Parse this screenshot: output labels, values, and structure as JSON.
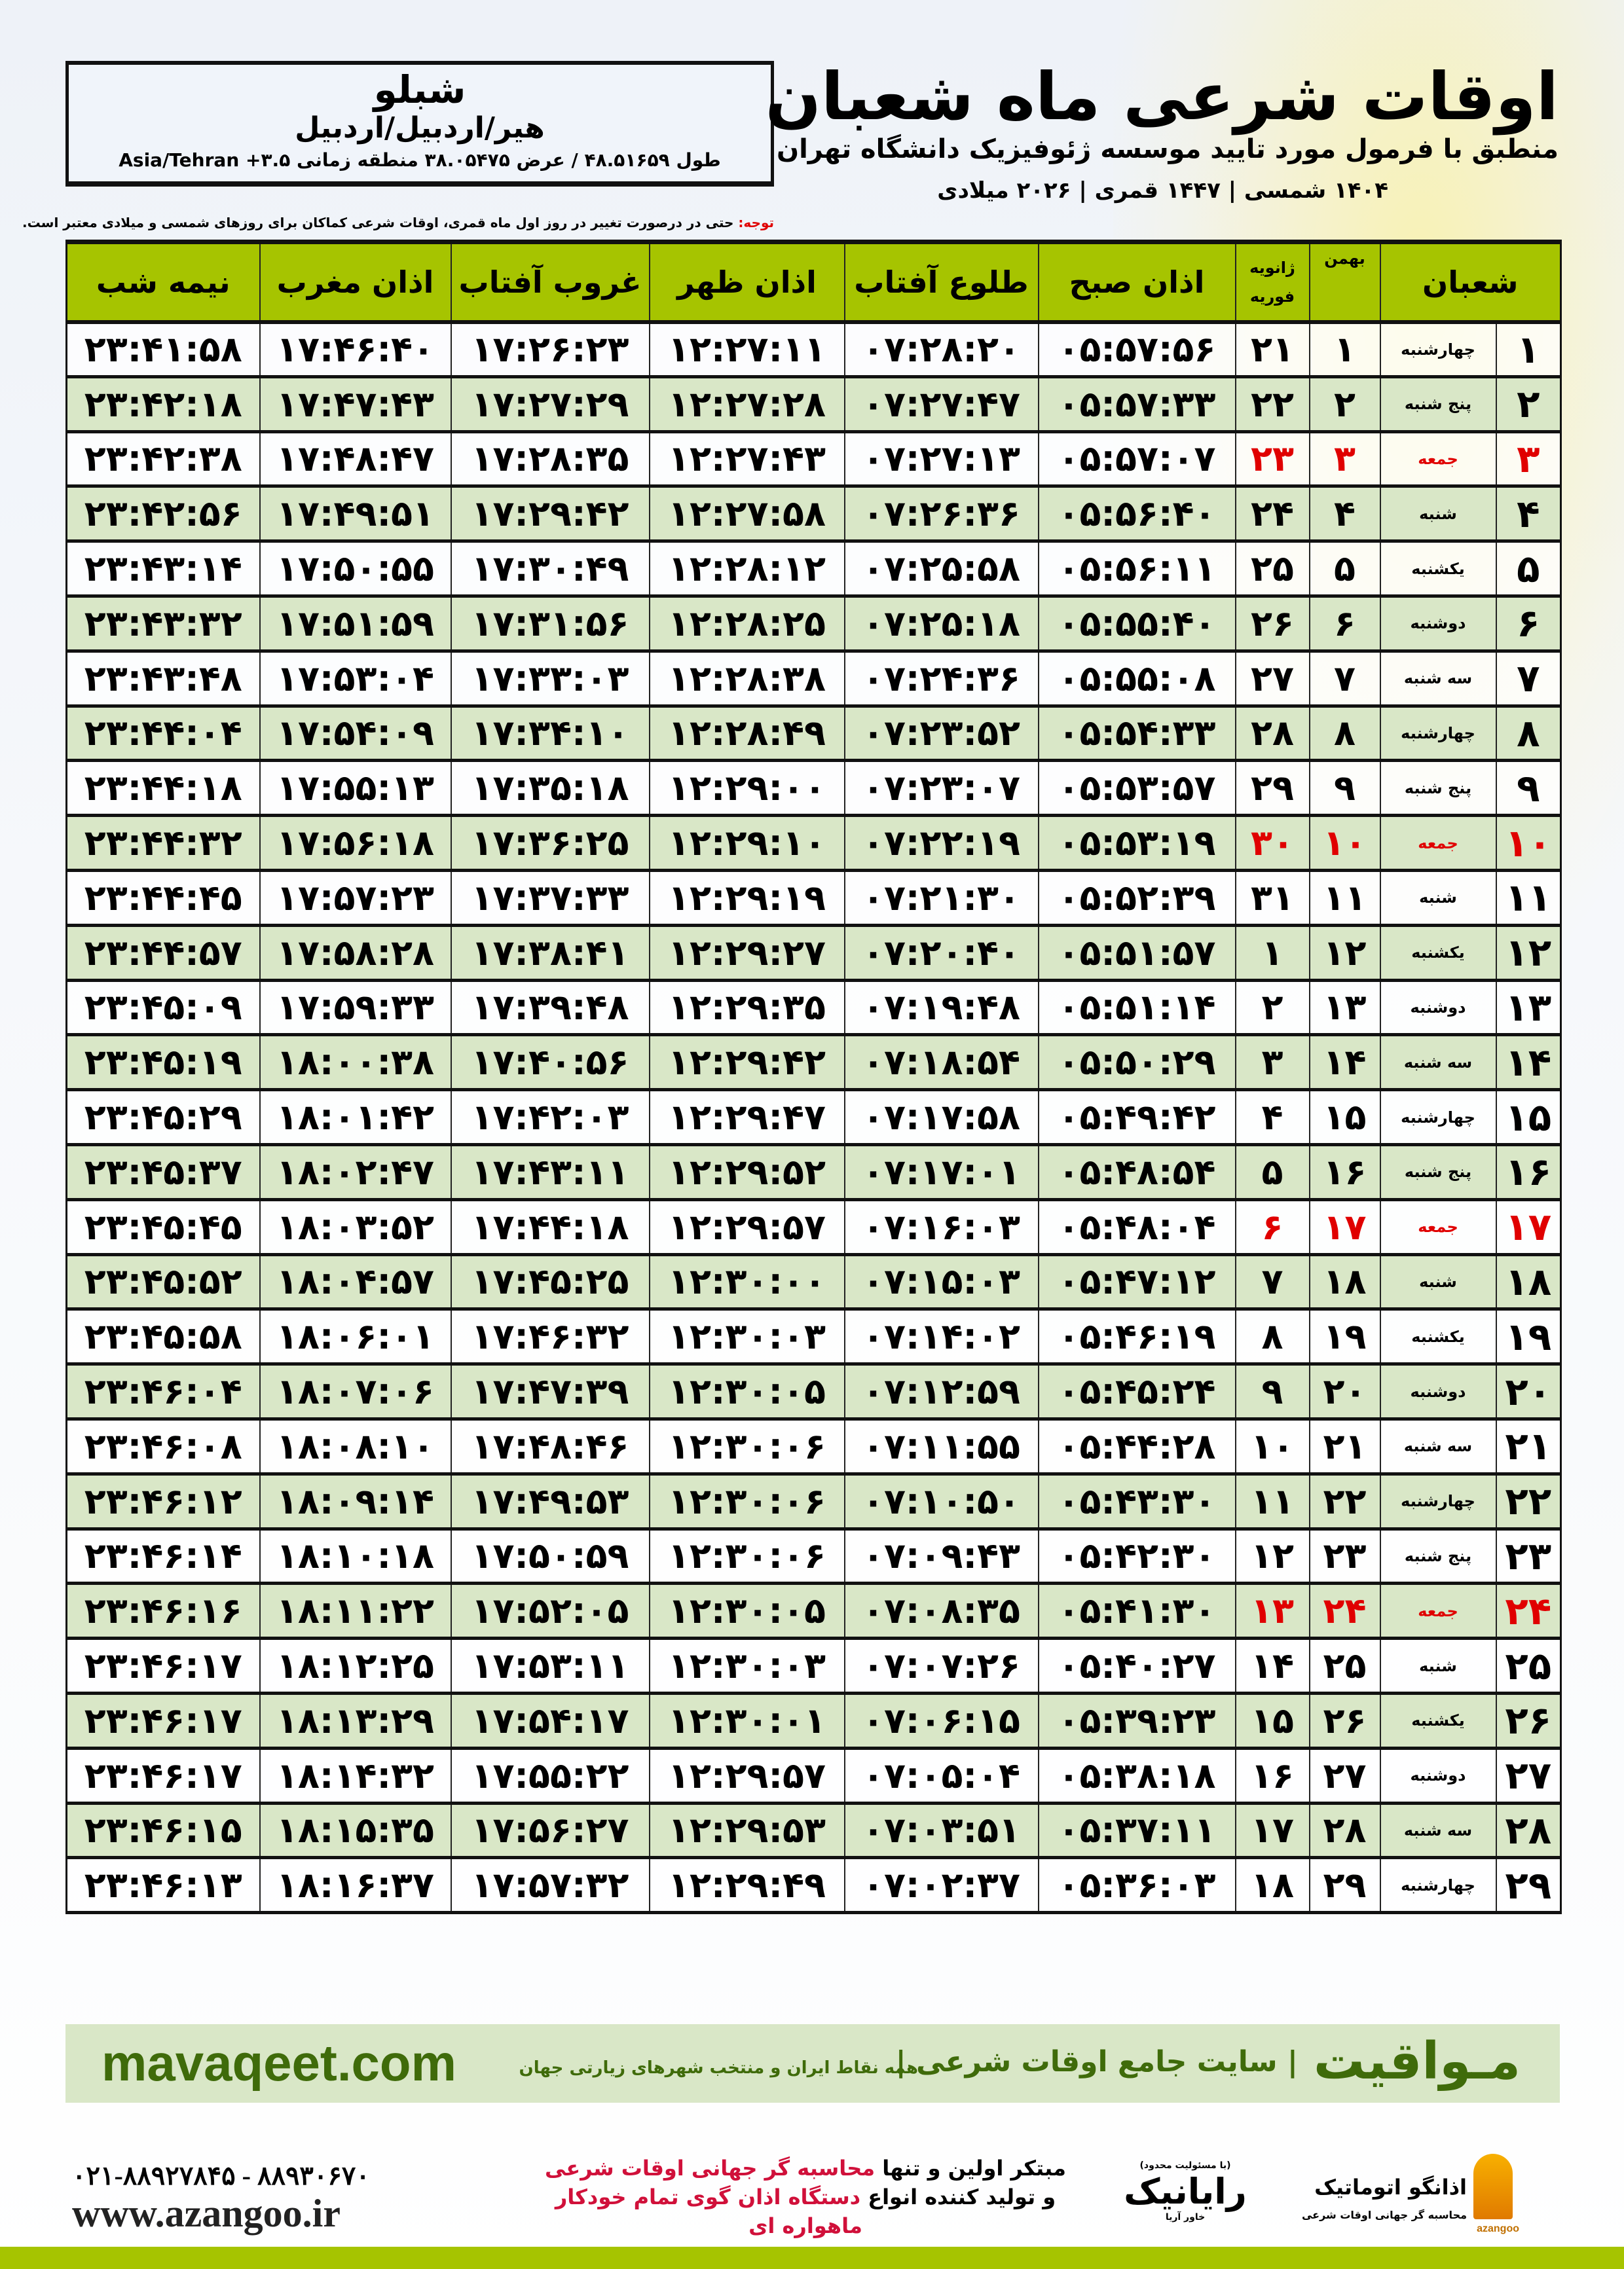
{
  "location": {
    "name": "شبلو",
    "path": "هیر/اردبیل/اردبیل",
    "coords": "طول ۴۸.۵۱۶۵۹ / عرض ۳۸.۰۵۴۷۵ منطقه زمانی ۳.۵+ Asia/Tehran"
  },
  "header": {
    "title": "اوقات شرعی ماه شعبان",
    "subtitle": "منطبق با فرمول مورد تایید موسسه ژئوفیزیک دانشگاه تهران",
    "years": "۱۴۰۴ شمسی | ۱۴۴۷ قمری | ۲۰۲۶ میلادی"
  },
  "note": {
    "label": "توجه:",
    "text": " حتی در درصورت تغییر در روز اول ماه قمری، اوقات شرعی کماکان برای روزهای شمسی و میلادی معتبر است."
  },
  "colors": {
    "header_green": "#a6c400",
    "alt_row": "#d9e7c7",
    "friday_red": "#e00000",
    "brand_green": "#3f6b0a"
  },
  "table": {
    "columns": {
      "shaban": "شعبان",
      "bahman": "بهمن",
      "jan": "ژانویه",
      "feb": "فوریه",
      "sobh": "اذان صبح",
      "tolu": "طلوع آفتاب",
      "zohr": "اذان ظهر",
      "ghorub": "غروب آفتاب",
      "maghrib": "اذان مغرب",
      "nimeh": "نیمه شب"
    },
    "rows": [
      [
        "۱",
        "چهارشنبه",
        "۱",
        "۲۱",
        "۰۵:۵۷:۵۶",
        "۰۷:۲۸:۲۰",
        "۱۲:۲۷:۱۱",
        "۱۷:۲۶:۲۳",
        "۱۷:۴۶:۴۰",
        "۲۳:۴۱:۵۸"
      ],
      [
        "۲",
        "پنج شنبه",
        "۲",
        "۲۲",
        "۰۵:۵۷:۳۳",
        "۰۷:۲۷:۴۷",
        "۱۲:۲۷:۲۸",
        "۱۷:۲۷:۲۹",
        "۱۷:۴۷:۴۳",
        "۲۳:۴۲:۱۸"
      ],
      [
        "۳",
        "جمعه",
        "۳",
        "۲۳",
        "۰۵:۵۷:۰۷",
        "۰۷:۲۷:۱۳",
        "۱۲:۲۷:۴۳",
        "۱۷:۲۸:۳۵",
        "۱۷:۴۸:۴۷",
        "۲۳:۴۲:۳۸"
      ],
      [
        "۴",
        "شنبه",
        "۴",
        "۲۴",
        "۰۵:۵۶:۴۰",
        "۰۷:۲۶:۳۶",
        "۱۲:۲۷:۵۸",
        "۱۷:۲۹:۴۲",
        "۱۷:۴۹:۵۱",
        "۲۳:۴۲:۵۶"
      ],
      [
        "۵",
        "یکشنبه",
        "۵",
        "۲۵",
        "۰۵:۵۶:۱۱",
        "۰۷:۲۵:۵۸",
        "۱۲:۲۸:۱۲",
        "۱۷:۳۰:۴۹",
        "۱۷:۵۰:۵۵",
        "۲۳:۴۳:۱۴"
      ],
      [
        "۶",
        "دوشنبه",
        "۶",
        "۲۶",
        "۰۵:۵۵:۴۰",
        "۰۷:۲۵:۱۸",
        "۱۲:۲۸:۲۵",
        "۱۷:۳۱:۵۶",
        "۱۷:۵۱:۵۹",
        "۲۳:۴۳:۳۲"
      ],
      [
        "۷",
        "سه شنبه",
        "۷",
        "۲۷",
        "۰۵:۵۵:۰۸",
        "۰۷:۲۴:۳۶",
        "۱۲:۲۸:۳۸",
        "۱۷:۳۳:۰۳",
        "۱۷:۵۳:۰۴",
        "۲۳:۴۳:۴۸"
      ],
      [
        "۸",
        "چهارشنبه",
        "۸",
        "۲۸",
        "۰۵:۵۴:۳۳",
        "۰۷:۲۳:۵۲",
        "۱۲:۲۸:۴۹",
        "۱۷:۳۴:۱۰",
        "۱۷:۵۴:۰۹",
        "۲۳:۴۴:۰۴"
      ],
      [
        "۹",
        "پنج شنبه",
        "۹",
        "۲۹",
        "۰۵:۵۳:۵۷",
        "۰۷:۲۳:۰۷",
        "۱۲:۲۹:۰۰",
        "۱۷:۳۵:۱۸",
        "۱۷:۵۵:۱۳",
        "۲۳:۴۴:۱۸"
      ],
      [
        "۱۰",
        "جمعه",
        "۱۰",
        "۳۰",
        "۰۵:۵۳:۱۹",
        "۰۷:۲۲:۱۹",
        "۱۲:۲۹:۱۰",
        "۱۷:۳۶:۲۵",
        "۱۷:۵۶:۱۸",
        "۲۳:۴۴:۳۲"
      ],
      [
        "۱۱",
        "شنبه",
        "۱۱",
        "۳۱",
        "۰۵:۵۲:۳۹",
        "۰۷:۲۱:۳۰",
        "۱۲:۲۹:۱۹",
        "۱۷:۳۷:۳۳",
        "۱۷:۵۷:۲۳",
        "۲۳:۴۴:۴۵"
      ],
      [
        "۱۲",
        "یکشنبه",
        "۱۲",
        "۱",
        "۰۵:۵۱:۵۷",
        "۰۷:۲۰:۴۰",
        "۱۲:۲۹:۲۷",
        "۱۷:۳۸:۴۱",
        "۱۷:۵۸:۲۸",
        "۲۳:۴۴:۵۷"
      ],
      [
        "۱۳",
        "دوشنبه",
        "۱۳",
        "۲",
        "۰۵:۵۱:۱۴",
        "۰۷:۱۹:۴۸",
        "۱۲:۲۹:۳۵",
        "۱۷:۳۹:۴۸",
        "۱۷:۵۹:۳۳",
        "۲۳:۴۵:۰۹"
      ],
      [
        "۱۴",
        "سه شنبه",
        "۱۴",
        "۳",
        "۰۵:۵۰:۲۹",
        "۰۷:۱۸:۵۴",
        "۱۲:۲۹:۴۲",
        "۱۷:۴۰:۵۶",
        "۱۸:۰۰:۳۸",
        "۲۳:۴۵:۱۹"
      ],
      [
        "۱۵",
        "چهارشنبه",
        "۱۵",
        "۴",
        "۰۵:۴۹:۴۲",
        "۰۷:۱۷:۵۸",
        "۱۲:۲۹:۴۷",
        "۱۷:۴۲:۰۳",
        "۱۸:۰۱:۴۲",
        "۲۳:۴۵:۲۹"
      ],
      [
        "۱۶",
        "پنج شنبه",
        "۱۶",
        "۵",
        "۰۵:۴۸:۵۴",
        "۰۷:۱۷:۰۱",
        "۱۲:۲۹:۵۲",
        "۱۷:۴۳:۱۱",
        "۱۸:۰۲:۴۷",
        "۲۳:۴۵:۳۷"
      ],
      [
        "۱۷",
        "جمعه",
        "۱۷",
        "۶",
        "۰۵:۴۸:۰۴",
        "۰۷:۱۶:۰۳",
        "۱۲:۲۹:۵۷",
        "۱۷:۴۴:۱۸",
        "۱۸:۰۳:۵۲",
        "۲۳:۴۵:۴۵"
      ],
      [
        "۱۸",
        "شنبه",
        "۱۸",
        "۷",
        "۰۵:۴۷:۱۲",
        "۰۷:۱۵:۰۳",
        "۱۲:۳۰:۰۰",
        "۱۷:۴۵:۲۵",
        "۱۸:۰۴:۵۷",
        "۲۳:۴۵:۵۲"
      ],
      [
        "۱۹",
        "یکشنبه",
        "۱۹",
        "۸",
        "۰۵:۴۶:۱۹",
        "۰۷:۱۴:۰۲",
        "۱۲:۳۰:۰۳",
        "۱۷:۴۶:۳۲",
        "۱۸:۰۶:۰۱",
        "۲۳:۴۵:۵۸"
      ],
      [
        "۲۰",
        "دوشنبه",
        "۲۰",
        "۹",
        "۰۵:۴۵:۲۴",
        "۰۷:۱۲:۵۹",
        "۱۲:۳۰:۰۵",
        "۱۷:۴۷:۳۹",
        "۱۸:۰۷:۰۶",
        "۲۳:۴۶:۰۴"
      ],
      [
        "۲۱",
        "سه شنبه",
        "۲۱",
        "۱۰",
        "۰۵:۴۴:۲۸",
        "۰۷:۱۱:۵۵",
        "۱۲:۳۰:۰۶",
        "۱۷:۴۸:۴۶",
        "۱۸:۰۸:۱۰",
        "۲۳:۴۶:۰۸"
      ],
      [
        "۲۲",
        "چهارشنبه",
        "۲۲",
        "۱۱",
        "۰۵:۴۳:۳۰",
        "۰۷:۱۰:۵۰",
        "۱۲:۳۰:۰۶",
        "۱۷:۴۹:۵۳",
        "۱۸:۰۹:۱۴",
        "۲۳:۴۶:۱۲"
      ],
      [
        "۲۳",
        "پنج شنبه",
        "۲۳",
        "۱۲",
        "۰۵:۴۲:۳۰",
        "۰۷:۰۹:۴۳",
        "۱۲:۳۰:۰۶",
        "۱۷:۵۰:۵۹",
        "۱۸:۱۰:۱۸",
        "۲۳:۴۶:۱۴"
      ],
      [
        "۲۴",
        "جمعه",
        "۲۴",
        "۱۳",
        "۰۵:۴۱:۳۰",
        "۰۷:۰۸:۳۵",
        "۱۲:۳۰:۰۵",
        "۱۷:۵۲:۰۵",
        "۱۸:۱۱:۲۲",
        "۲۳:۴۶:۱۶"
      ],
      [
        "۲۵",
        "شنبه",
        "۲۵",
        "۱۴",
        "۰۵:۴۰:۲۷",
        "۰۷:۰۷:۲۶",
        "۱۲:۳۰:۰۳",
        "۱۷:۵۳:۱۱",
        "۱۸:۱۲:۲۵",
        "۲۳:۴۶:۱۷"
      ],
      [
        "۲۶",
        "یکشنبه",
        "۲۶",
        "۱۵",
        "۰۵:۳۹:۲۳",
        "۰۷:۰۶:۱۵",
        "۱۲:۳۰:۰۱",
        "۱۷:۵۴:۱۷",
        "۱۸:۱۳:۲۹",
        "۲۳:۴۶:۱۷"
      ],
      [
        "۲۷",
        "دوشنبه",
        "۲۷",
        "۱۶",
        "۰۵:۳۸:۱۸",
        "۰۷:۰۵:۰۴",
        "۱۲:۲۹:۵۷",
        "۱۷:۵۵:۲۲",
        "۱۸:۱۴:۳۲",
        "۲۳:۴۶:۱۷"
      ],
      [
        "۲۸",
        "سه شنبه",
        "۲۸",
        "۱۷",
        "۰۵:۳۷:۱۱",
        "۰۷:۰۳:۵۱",
        "۱۲:۲۹:۵۳",
        "۱۷:۵۶:۲۷",
        "۱۸:۱۵:۳۵",
        "۲۳:۴۶:۱۵"
      ],
      [
        "۲۹",
        "چهارشنبه",
        "۲۹",
        "۱۸",
        "۰۵:۳۶:۰۳",
        "۰۷:۰۲:۳۷",
        "۱۲:۲۹:۴۹",
        "۱۷:۵۷:۳۲",
        "۱۸:۱۶:۳۷",
        "۲۳:۴۶:۱۳"
      ]
    ]
  },
  "footer": {
    "brand": "مـواقیت",
    "brand_tagline": "| سایت جامع اوقات شرعی |",
    "brand_sub": "همه نقاط ایران و منتخب شهرهای زیارتی جهان",
    "site": "mavaqeet.com",
    "phone": "۰۲۱-۸۸۹۲۷۸۴۵ - ۸۸۹۳۰۶۷۰",
    "www": "www.azangoo.ir",
    "promo1a": "مبتکر اولین و تنها ",
    "promo1b": "محاسبه گر جهانی اوقات شرعی",
    "promo2a": "و تولید کننده انواع ",
    "promo2b": "دستگاه اذان گوی تمام خودکار ماهواره ای",
    "raynik": "رایانیک",
    "raynik_sub": "خاور آریا",
    "raynik_tiny": "(با مسئولیت محدود)",
    "azangoo": "اذانگو اتوماتیک",
    "azangoo_sub": "محاسبه گر جهانی اوقات شرعی",
    "azangoo_en": "azangoo"
  }
}
